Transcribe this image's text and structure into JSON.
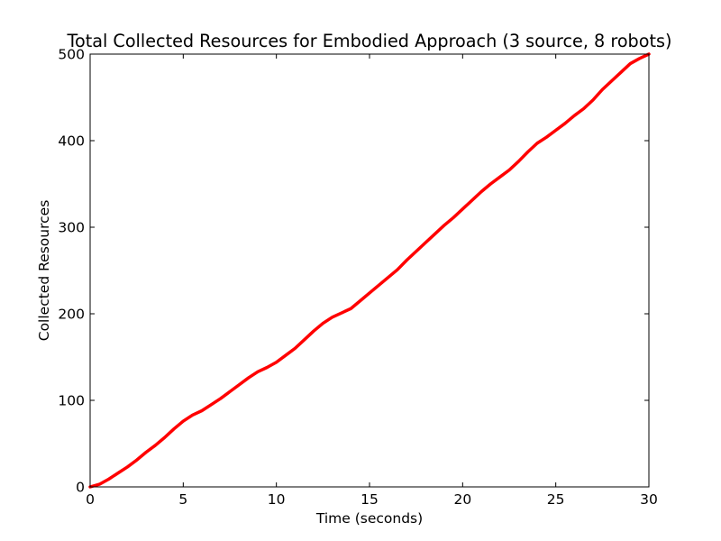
{
  "chart_data": {
    "type": "line",
    "title": "Total Collected Resources for Embodied Approach (3 source, 8 robots)",
    "xlabel": "Time (seconds)",
    "ylabel": "Collected Resources",
    "xlim": [
      0,
      30
    ],
    "ylim": [
      0,
      500
    ],
    "xticks": [
      0,
      5,
      10,
      15,
      20,
      25,
      30
    ],
    "yticks": [
      0,
      100,
      200,
      300,
      400,
      500
    ],
    "xtick_labels": [
      "0",
      "5",
      "10",
      "15",
      "20",
      "25",
      "30"
    ],
    "ytick_labels": [
      "0",
      "100",
      "200",
      "300",
      "400",
      "500"
    ],
    "grid": false,
    "series": [
      {
        "color": "#ff0000",
        "x": [
          0,
          0.5,
          1,
          1.5,
          2,
          2.5,
          3,
          3.5,
          4,
          4.5,
          5,
          5.5,
          6,
          6.5,
          7,
          7.5,
          8,
          8.5,
          9,
          9.5,
          10,
          10.5,
          11,
          11.5,
          12,
          12.5,
          13,
          13.5,
          14,
          14.5,
          15,
          15.5,
          16,
          16.5,
          17,
          17.5,
          18,
          18.5,
          19,
          19.5,
          20,
          20.5,
          21,
          21.5,
          22,
          22.5,
          23,
          23.5,
          24,
          24.5,
          25,
          25.5,
          26,
          26.5,
          27,
          27.5,
          28,
          28.5,
          29,
          29.5,
          30
        ],
        "y": [
          0,
          3,
          9,
          16,
          23,
          31,
          40,
          48,
          57,
          67,
          76,
          83,
          88,
          95,
          102,
          110,
          118,
          126,
          133,
          138,
          144,
          152,
          160,
          170,
          180,
          189,
          196,
          201,
          206,
          215,
          224,
          233,
          242,
          251,
          262,
          272,
          282,
          292,
          302,
          311,
          321,
          331,
          341,
          350,
          358,
          366,
          376,
          387,
          397,
          404,
          412,
          420,
          429,
          437,
          447,
          459,
          469,
          479,
          489,
          495,
          500
        ]
      }
    ]
  }
}
